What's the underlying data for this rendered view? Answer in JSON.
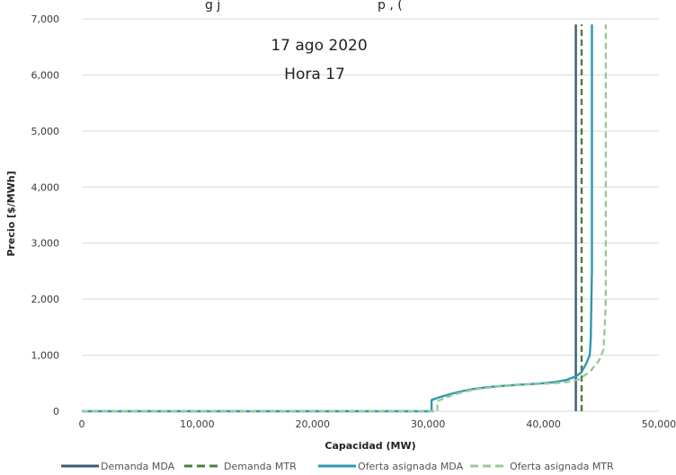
{
  "chart_data": {
    "type": "line",
    "title_fragment": "g j",
    "title_fragment2": "p , (",
    "annotations": [
      "17 ago 2020",
      "Hora 17"
    ],
    "xlabel": "Capacidad (MW)",
    "ylabel": "Precio [$/MWh]",
    "xlim": [
      0,
      50000
    ],
    "ylim": [
      0,
      7000
    ],
    "x_ticks": [
      0,
      10000,
      20000,
      30000,
      40000,
      50000
    ],
    "x_tick_labels": [
      "0",
      "10,000",
      "20,000",
      "30,000",
      "40,000",
      "50,000"
    ],
    "y_ticks": [
      0,
      1000,
      2000,
      3000,
      4000,
      5000,
      6000,
      7000
    ],
    "y_tick_labels": [
      "0",
      "1,000",
      "2,000",
      "3,000",
      "4,000",
      "5,000",
      "6,000",
      "7,000"
    ],
    "grid": "horizontal",
    "legend_position": "bottom",
    "series": [
      {
        "name": "Demanda MDA",
        "color": "#3d5a73",
        "dash": "solid",
        "points": [
          [
            42800,
            0
          ],
          [
            42800,
            6900
          ]
        ]
      },
      {
        "name": "Demanda MTR",
        "color": "#4e7d3e",
        "dash": "dashed",
        "points": [
          [
            43300,
            0
          ],
          [
            43300,
            6900
          ]
        ]
      },
      {
        "name": "Oferta asignada MDA",
        "color": "#2e98b2",
        "dash": "solid",
        "points": [
          [
            0,
            0
          ],
          [
            30300,
            0
          ],
          [
            30300,
            200
          ],
          [
            31000,
            250
          ],
          [
            32000,
            310
          ],
          [
            33000,
            360
          ],
          [
            34000,
            400
          ],
          [
            35000,
            425
          ],
          [
            36000,
            445
          ],
          [
            37000,
            460
          ],
          [
            38000,
            475
          ],
          [
            39000,
            485
          ],
          [
            40000,
            500
          ],
          [
            41000,
            520
          ],
          [
            42000,
            560
          ],
          [
            42800,
            620
          ],
          [
            43300,
            700
          ],
          [
            43700,
            850
          ],
          [
            44000,
            1000
          ],
          [
            44100,
            1300
          ],
          [
            44150,
            2000
          ],
          [
            44200,
            2500
          ],
          [
            44200,
            6900
          ]
        ]
      },
      {
        "name": "Oferta asignada MTR",
        "color": "#9bc99a",
        "dash": "dashed",
        "points": [
          [
            0,
            0
          ],
          [
            30800,
            0
          ],
          [
            30800,
            180
          ],
          [
            32000,
            280
          ],
          [
            33000,
            340
          ],
          [
            34000,
            390
          ],
          [
            35000,
            415
          ],
          [
            36000,
            440
          ],
          [
            37000,
            455
          ],
          [
            38000,
            470
          ],
          [
            39000,
            480
          ],
          [
            40000,
            490
          ],
          [
            41000,
            500
          ],
          [
            42000,
            520
          ],
          [
            43000,
            560
          ],
          [
            44000,
            700
          ],
          [
            44800,
            900
          ],
          [
            45200,
            1100
          ],
          [
            45300,
            1500
          ],
          [
            45400,
            2000
          ],
          [
            45400,
            6900
          ]
        ]
      }
    ]
  }
}
